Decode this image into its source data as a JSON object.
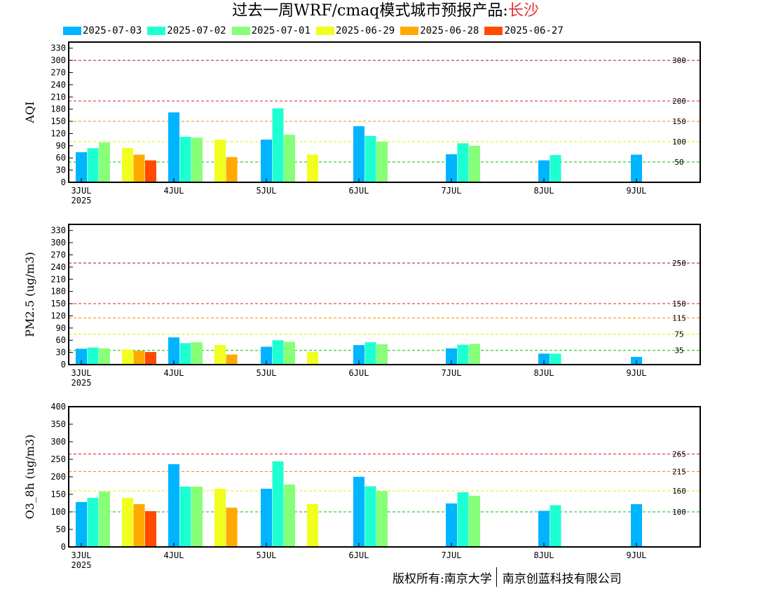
{
  "title": {
    "main": "过去一周WRF/cmaq模式城市预报产品:",
    "city": "长沙"
  },
  "legend": [
    {
      "label": "2025-07-03",
      "color": "#00b4ff"
    },
    {
      "label": "2025-07-02",
      "color": "#1effd2"
    },
    {
      "label": "2025-07-01",
      "color": "#88ff78"
    },
    {
      "label": "2025-06-29",
      "color": "#f0ff1e"
    },
    {
      "label": "2025-06-28",
      "color": "#ffaa00"
    },
    {
      "label": "2025-06-27",
      "color": "#ff4a00"
    }
  ],
  "x_tick_labels": [
    "3JUL",
    "4JUL",
    "5JUL",
    "6JUL",
    "7JUL",
    "8JUL",
    "9JUL"
  ],
  "x_year_label": "2025",
  "chart_data": [
    {
      "type": "bar",
      "ylabel": "AQI",
      "ylim": [
        0,
        345
      ],
      "yticks": [
        0,
        30,
        60,
        90,
        120,
        150,
        180,
        210,
        240,
        270,
        300,
        330
      ],
      "thresholds": [
        {
          "value": 300,
          "label": "300",
          "color": "#c00040"
        },
        {
          "value": 200,
          "label": "200",
          "color": "#e02020"
        },
        {
          "value": 150,
          "label": "150",
          "color": "#ff8800"
        },
        {
          "value": 100,
          "label": "100",
          "color": "#e8e800"
        },
        {
          "value": 50,
          "label": "50",
          "color": "#00c000"
        }
      ],
      "bars": [
        {
          "x": 0,
          "series": "2025-07-03",
          "value": 74
        },
        {
          "x": 0.125,
          "series": "2025-07-02",
          "value": 84
        },
        {
          "x": 0.25,
          "series": "2025-07-01",
          "value": 98
        },
        {
          "x": 0.5,
          "series": "2025-06-29",
          "value": 84
        },
        {
          "x": 0.625,
          "series": "2025-06-28",
          "value": 68
        },
        {
          "x": 0.75,
          "series": "2025-06-27",
          "value": 54
        },
        {
          "x": 1,
          "series": "2025-07-03",
          "value": 172
        },
        {
          "x": 1.125,
          "series": "2025-07-02",
          "value": 112
        },
        {
          "x": 1.25,
          "series": "2025-07-01",
          "value": 110
        },
        {
          "x": 1.5,
          "series": "2025-06-29",
          "value": 105
        },
        {
          "x": 1.625,
          "series": "2025-06-28",
          "value": 62
        },
        {
          "x": 2,
          "series": "2025-07-03",
          "value": 105
        },
        {
          "x": 2.125,
          "series": "2025-07-02",
          "value": 182
        },
        {
          "x": 2.25,
          "series": "2025-07-01",
          "value": 117
        },
        {
          "x": 2.5,
          "series": "2025-06-29",
          "value": 68
        },
        {
          "x": 3,
          "series": "2025-07-03",
          "value": 138
        },
        {
          "x": 3.125,
          "series": "2025-07-02",
          "value": 114
        },
        {
          "x": 3.25,
          "series": "2025-07-01",
          "value": 100
        },
        {
          "x": 4,
          "series": "2025-07-03",
          "value": 69
        },
        {
          "x": 4.125,
          "series": "2025-07-02",
          "value": 96
        },
        {
          "x": 4.25,
          "series": "2025-07-01",
          "value": 90
        },
        {
          "x": 5,
          "series": "2025-07-03",
          "value": 54
        },
        {
          "x": 5.125,
          "series": "2025-07-02",
          "value": 67
        },
        {
          "x": 6,
          "series": "2025-07-03",
          "value": 68
        }
      ]
    },
    {
      "type": "bar",
      "ylabel": "PM2.5 (ug/m3)",
      "ylim": [
        0,
        345
      ],
      "yticks": [
        0,
        30,
        60,
        90,
        120,
        150,
        180,
        210,
        240,
        270,
        300,
        330
      ],
      "thresholds": [
        {
          "value": 250,
          "label": "250",
          "color": "#c00040"
        },
        {
          "value": 150,
          "label": "150",
          "color": "#e02020"
        },
        {
          "value": 115,
          "label": "115",
          "color": "#ff8800"
        },
        {
          "value": 75,
          "label": "75",
          "color": "#e8e800"
        },
        {
          "value": 35,
          "label": "35",
          "color": "#00c000"
        }
      ],
      "bars": [
        {
          "x": 0,
          "series": "2025-07-03",
          "value": 39
        },
        {
          "x": 0.125,
          "series": "2025-07-02",
          "value": 42
        },
        {
          "x": 0.25,
          "series": "2025-07-01",
          "value": 40
        },
        {
          "x": 0.5,
          "series": "2025-06-29",
          "value": 37
        },
        {
          "x": 0.625,
          "series": "2025-06-28",
          "value": 34
        },
        {
          "x": 0.75,
          "series": "2025-06-27",
          "value": 31
        },
        {
          "x": 1,
          "series": "2025-07-03",
          "value": 67
        },
        {
          "x": 1.125,
          "series": "2025-07-02",
          "value": 53
        },
        {
          "x": 1.25,
          "series": "2025-07-01",
          "value": 55
        },
        {
          "x": 1.5,
          "series": "2025-06-29",
          "value": 48
        },
        {
          "x": 1.625,
          "series": "2025-06-28",
          "value": 25
        },
        {
          "x": 2,
          "series": "2025-07-03",
          "value": 44
        },
        {
          "x": 2.125,
          "series": "2025-07-02",
          "value": 60
        },
        {
          "x": 2.25,
          "series": "2025-07-01",
          "value": 56
        },
        {
          "x": 2.5,
          "series": "2025-06-29",
          "value": 31
        },
        {
          "x": 3,
          "series": "2025-07-03",
          "value": 48
        },
        {
          "x": 3.125,
          "series": "2025-07-02",
          "value": 55
        },
        {
          "x": 3.25,
          "series": "2025-07-01",
          "value": 50
        },
        {
          "x": 4,
          "series": "2025-07-03",
          "value": 40
        },
        {
          "x": 4.125,
          "series": "2025-07-02",
          "value": 49
        },
        {
          "x": 4.25,
          "series": "2025-07-01",
          "value": 51
        },
        {
          "x": 5,
          "series": "2025-07-03",
          "value": 27
        },
        {
          "x": 5.125,
          "series": "2025-07-02",
          "value": 27
        },
        {
          "x": 6,
          "series": "2025-07-03",
          "value": 19
        }
      ]
    },
    {
      "type": "bar",
      "ylabel": "O3_8h (ug/m3)",
      "ylim": [
        0,
        400
      ],
      "yticks": [
        0,
        50,
        100,
        150,
        200,
        250,
        300,
        350,
        400
      ],
      "thresholds": [
        {
          "value": 265,
          "label": "265",
          "color": "#e02020"
        },
        {
          "value": 215,
          "label": "215",
          "color": "#ff8800"
        },
        {
          "value": 160,
          "label": "160",
          "color": "#e8e800"
        },
        {
          "value": 100,
          "label": "100",
          "color": "#00c000"
        }
      ],
      "bars": [
        {
          "x": 0,
          "series": "2025-07-03",
          "value": 128
        },
        {
          "x": 0.125,
          "series": "2025-07-02",
          "value": 140
        },
        {
          "x": 0.25,
          "series": "2025-07-01",
          "value": 158
        },
        {
          "x": 0.5,
          "series": "2025-06-29",
          "value": 140
        },
        {
          "x": 0.625,
          "series": "2025-06-28",
          "value": 122
        },
        {
          "x": 0.75,
          "series": "2025-06-27",
          "value": 102
        },
        {
          "x": 1,
          "series": "2025-07-03",
          "value": 236
        },
        {
          "x": 1.125,
          "series": "2025-07-02",
          "value": 172
        },
        {
          "x": 1.25,
          "series": "2025-07-01",
          "value": 172
        },
        {
          "x": 1.5,
          "series": "2025-06-29",
          "value": 166
        },
        {
          "x": 1.625,
          "series": "2025-06-28",
          "value": 112
        },
        {
          "x": 2,
          "series": "2025-07-03",
          "value": 166
        },
        {
          "x": 2.125,
          "series": "2025-07-02",
          "value": 244
        },
        {
          "x": 2.25,
          "series": "2025-07-01",
          "value": 178
        },
        {
          "x": 2.5,
          "series": "2025-06-29",
          "value": 122
        },
        {
          "x": 3,
          "series": "2025-07-03",
          "value": 200
        },
        {
          "x": 3.125,
          "series": "2025-07-02",
          "value": 173
        },
        {
          "x": 3.25,
          "series": "2025-07-01",
          "value": 159
        },
        {
          "x": 4,
          "series": "2025-07-03",
          "value": 124
        },
        {
          "x": 4.125,
          "series": "2025-07-02",
          "value": 156
        },
        {
          "x": 4.25,
          "series": "2025-07-01",
          "value": 146
        },
        {
          "x": 5,
          "series": "2025-07-03",
          "value": 103
        },
        {
          "x": 5.125,
          "series": "2025-07-02",
          "value": 119
        },
        {
          "x": 6,
          "series": "2025-07-03",
          "value": 122
        }
      ]
    }
  ],
  "footer": {
    "left": "版权所有:南京大学",
    "right": "南京创蓝科技有限公司"
  }
}
